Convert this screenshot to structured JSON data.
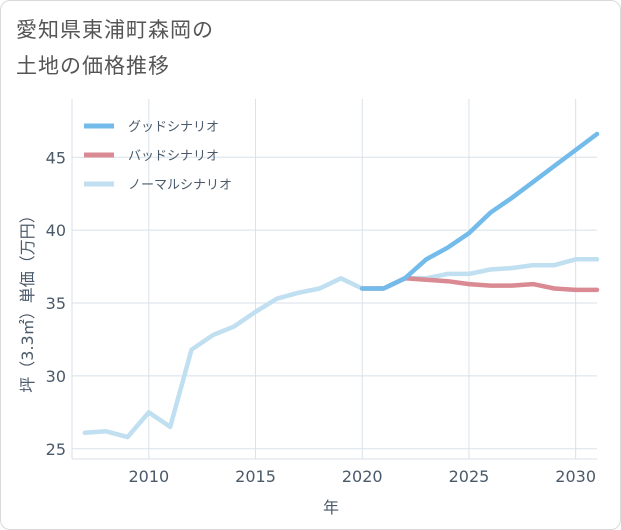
{
  "title": {
    "line1": "愛知県東浦町森岡の",
    "line2": "土地の価格推移"
  },
  "colors": {
    "good": "#72bbea",
    "bad": "#da8a93",
    "normal": "#c0dff0",
    "grid": "#d8e2ea",
    "text": "#4a5a6a"
  },
  "chart_data": {
    "type": "line",
    "xlabel": "年",
    "ylabel": "坪（3.3㎡）単価（万円）",
    "xlim": [
      2006.4,
      2031
    ],
    "ylim": [
      24.3,
      49
    ],
    "xticks": [
      2010,
      2015,
      2020,
      2025,
      2030
    ],
    "yticks": [
      25,
      30,
      35,
      40,
      45
    ],
    "legend_position": "top-left",
    "series": [
      {
        "name": "グッドシナリオ",
        "color": "#72bbea",
        "x": [
          2020,
          2021,
          2022,
          2023,
          2024,
          2025,
          2026,
          2027,
          2028,
          2029,
          2030,
          2031
        ],
        "y": [
          36.0,
          36.0,
          36.7,
          38.0,
          38.8,
          39.8,
          41.2,
          42.2,
          43.3,
          44.4,
          45.5,
          46.6
        ]
      },
      {
        "name": "バッドシナリオ",
        "color": "#da8a93",
        "x": [
          2020,
          2021,
          2022,
          2023,
          2024,
          2025,
          2026,
          2027,
          2028,
          2029,
          2030,
          2031
        ],
        "y": [
          36.0,
          36.0,
          36.7,
          36.6,
          36.5,
          36.3,
          36.2,
          36.2,
          36.3,
          36.0,
          35.9,
          35.9
        ]
      },
      {
        "name": "ノーマルシナリオ",
        "color": "#c0dff0",
        "x": [
          2007,
          2008,
          2009,
          2010,
          2011,
          2012,
          2013,
          2014,
          2015,
          2016,
          2017,
          2018,
          2019,
          2020,
          2021,
          2022,
          2023,
          2024,
          2025,
          2026,
          2027,
          2028,
          2029,
          2030,
          2031
        ],
        "y": [
          26.1,
          26.2,
          25.8,
          27.5,
          26.5,
          31.8,
          32.8,
          33.4,
          34.4,
          35.3,
          35.7,
          36.0,
          36.7,
          36.0,
          36.0,
          36.7,
          36.7,
          37.0,
          37.0,
          37.3,
          37.4,
          37.6,
          37.6,
          38.0,
          38.0
        ]
      }
    ]
  }
}
